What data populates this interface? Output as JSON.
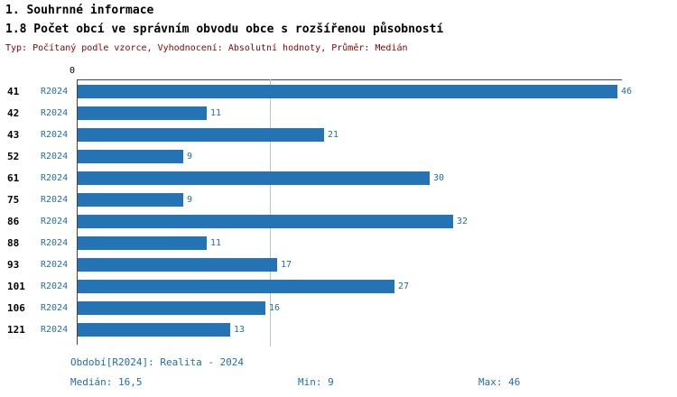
{
  "header": {
    "title": "1. Souhrnné informace",
    "subtitle": "1.8 Počet obcí ve správním obvodu obce s rozšířenou působností",
    "meta": "Typ: Počítaný podle vzorce, Vyhodnocení: Absolutní hodnoty, Průměr: Medián"
  },
  "colors": {
    "bar": "#2474b5",
    "accent_text": "#1d6db5",
    "meta_text": "#8b0000",
    "axis": "#444444",
    "gridline": "#b5c4cf"
  },
  "chart_data": {
    "type": "bar",
    "orientation": "horizontal",
    "title": "1.8 Počet obcí ve správním obvodu obce s rozšířenou působností",
    "categories": [
      "41",
      "42",
      "43",
      "52",
      "61",
      "75",
      "86",
      "88",
      "93",
      "101",
      "106",
      "121"
    ],
    "series": [
      {
        "name": "R2024",
        "values": [
          46,
          11,
          21,
          9,
          30,
          9,
          32,
          11,
          17,
          27,
          16,
          13
        ]
      }
    ],
    "xlim": [
      0,
      46.5
    ],
    "median_value": 16.5,
    "min": 9,
    "max": 46,
    "legend_position": "none",
    "grid": "single vertical median gridline",
    "axis": {
      "zero_label": "0"
    }
  },
  "footer": {
    "period": "Období[R2024]: Realita - 2024",
    "median": "Medián: 16,5",
    "min": "Min: 9",
    "max": "Max: 46"
  }
}
